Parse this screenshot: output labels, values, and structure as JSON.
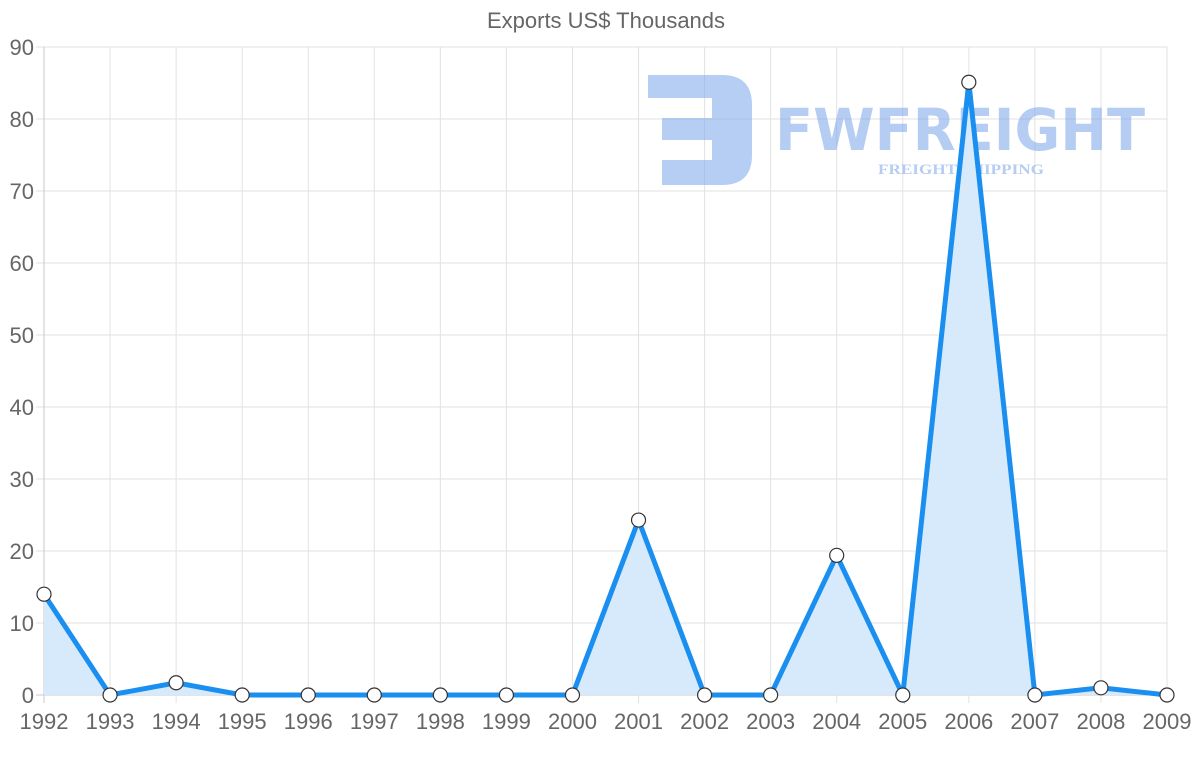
{
  "chart_data": {
    "type": "line",
    "title": "Exports US$ Thousands",
    "xlabel": "",
    "ylabel": "",
    "categories": [
      "1992",
      "1993",
      "1994",
      "1995",
      "1996",
      "1997",
      "1998",
      "1999",
      "2000",
      "2001",
      "2002",
      "2003",
      "2004",
      "2005",
      "2006",
      "2007",
      "2008",
      "2009"
    ],
    "series": [
      {
        "name": "Exports US$ Thousands",
        "values": [
          14.0,
          0,
          1.7,
          0,
          0,
          0,
          0,
          0,
          0,
          24.3,
          0,
          0,
          19.4,
          0,
          85.1,
          0,
          1.0,
          0
        ],
        "color": "#1a8ff0",
        "fill": "#d6eafc"
      }
    ],
    "ylim": [
      0,
      90
    ],
    "yticks": [
      0,
      10,
      20,
      30,
      40,
      50,
      60,
      70,
      80,
      90
    ],
    "grid": true,
    "legend": "none",
    "filled_area": true
  },
  "watermark": {
    "brand": "FWFREIGHT",
    "tagline": "FREIGHT SHIPPING",
    "color": "#7aa5ea"
  }
}
